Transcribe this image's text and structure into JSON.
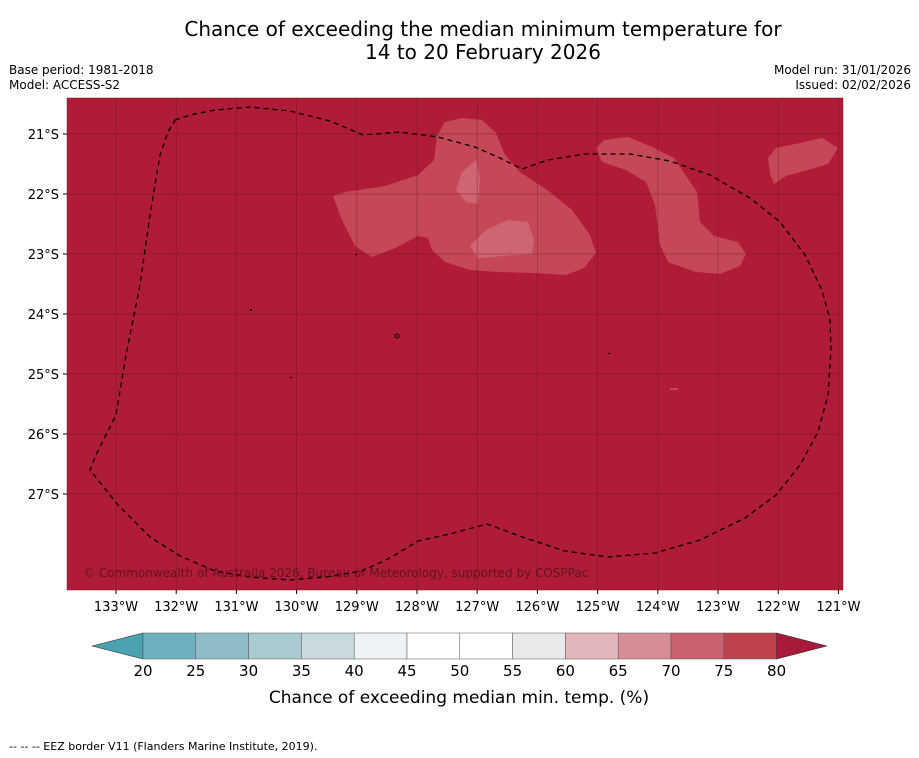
{
  "title": {
    "line1": "Chance of exceeding the median minimum temperature for",
    "line2": "14 to 20 February 2026"
  },
  "header_left": {
    "base_period": "Base period: 1981-2018",
    "model": "Model: ACCESS-S2"
  },
  "header_right": {
    "model_run": "Model run: 31/01/2026",
    "issued": "Issued: 02/02/2026"
  },
  "map": {
    "lat_labels": [
      "21°S",
      "22°S",
      "23°S",
      "24°S",
      "25°S",
      "26°S",
      "27°S"
    ],
    "lon_labels": [
      "133°W",
      "132°W",
      "131°W",
      "130°W",
      "129°W",
      "128°W",
      "127°W",
      "126°W",
      "125°W",
      "124°W",
      "123°W",
      "122°W",
      "121°W"
    ],
    "copyright": "© Commonwealth of Australia 2026, Bureau of Meteorology, supported by COSPPac",
    "base_color": "#b01c38"
  },
  "colorbar": {
    "tick_labels": [
      "20",
      "25",
      "30",
      "35",
      "40",
      "45",
      "50",
      "55",
      "60",
      "65",
      "70",
      "75",
      "80"
    ],
    "colors": [
      "#6fb0c0",
      "#8ebcc7",
      "#a9cace",
      "#c9dadd",
      "#edf3f5",
      "#ffffff",
      "#ffffff",
      "#e9e9e9",
      "#e2b6bc",
      "#d68d96",
      "#c9626e",
      "#bd414f"
    ],
    "low_color": "#4aa2b3",
    "high_color": "#a8193a",
    "label": "Chance of exceeding median min. temp. (%)"
  },
  "footer": {
    "legend_text": "--  --  -- EEZ border V11 (Flanders Marine Institute, 2019)."
  }
}
